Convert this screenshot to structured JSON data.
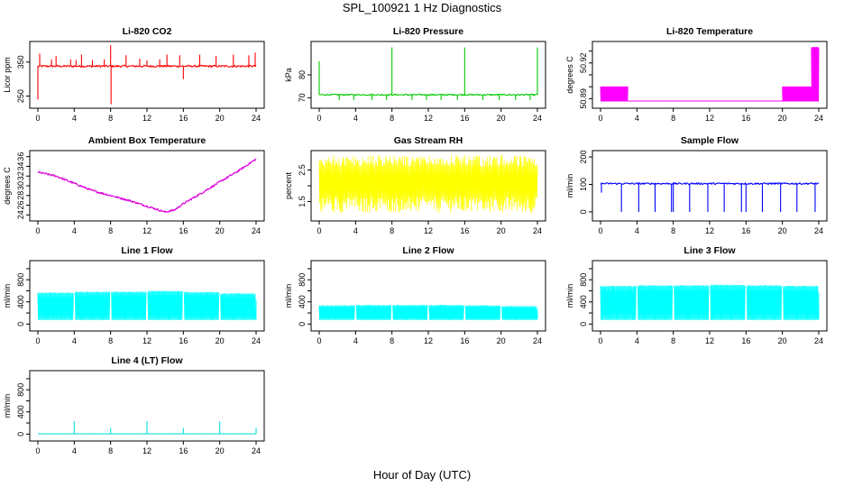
{
  "figure": {
    "title": "SPL_100921  1 Hz Diagnostics",
    "xlabel": "Hour of Day (UTC)"
  },
  "chart_data": [
    {
      "type": "line",
      "title": "Li-820 CO2",
      "ylabel": "Licor ppm",
      "color": "#ff0000",
      "xlim": [
        0,
        24
      ],
      "ylim": [
        225,
        400
      ],
      "yticks": [
        250,
        350
      ],
      "xticks": [
        0,
        4,
        8,
        12,
        16,
        20,
        24
      ],
      "baseline": 338,
      "noise": 3,
      "spikes": [
        {
          "x": 0.0,
          "y": 240
        },
        {
          "x": 0.2,
          "y": 375
        },
        {
          "x": 1.5,
          "y": 358
        },
        {
          "x": 2.0,
          "y": 368
        },
        {
          "x": 3.6,
          "y": 358
        },
        {
          "x": 4.2,
          "y": 356
        },
        {
          "x": 4.8,
          "y": 372
        },
        {
          "x": 6.0,
          "y": 356
        },
        {
          "x": 7.3,
          "y": 358
        },
        {
          "x": 8.0,
          "y": 400
        },
        {
          "x": 8.05,
          "y": 226
        },
        {
          "x": 9.7,
          "y": 370
        },
        {
          "x": 11.2,
          "y": 360
        },
        {
          "x": 12.0,
          "y": 355
        },
        {
          "x": 13.4,
          "y": 358
        },
        {
          "x": 14.2,
          "y": 372
        },
        {
          "x": 15.6,
          "y": 370
        },
        {
          "x": 16.0,
          "y": 300
        },
        {
          "x": 17.8,
          "y": 372
        },
        {
          "x": 19.6,
          "y": 368
        },
        {
          "x": 21.5,
          "y": 372
        },
        {
          "x": 23.2,
          "y": 370
        },
        {
          "x": 23.9,
          "y": 378
        }
      ]
    },
    {
      "type": "line",
      "title": "Li-820 Pressure",
      "ylabel": "kPa",
      "color": "#00cc00",
      "xlim": [
        0,
        24
      ],
      "ylim": [
        67,
        93
      ],
      "yticks": [
        70,
        80
      ],
      "xticks": [
        0,
        4,
        8,
        12,
        16,
        20,
        24
      ],
      "baseline": 71.3,
      "noise": 0.3,
      "spikes": [
        {
          "x": 0.0,
          "y": 86
        },
        {
          "x": 8.0,
          "y": 92
        },
        {
          "x": 16.0,
          "y": 92
        },
        {
          "x": 24.0,
          "y": 92
        },
        {
          "x": 2.2,
          "y": 69
        },
        {
          "x": 3.8,
          "y": 69
        },
        {
          "x": 5.8,
          "y": 69
        },
        {
          "x": 7.4,
          "y": 69
        },
        {
          "x": 10.2,
          "y": 69
        },
        {
          "x": 11.8,
          "y": 69
        },
        {
          "x": 13.4,
          "y": 69
        },
        {
          "x": 15.2,
          "y": 69
        },
        {
          "x": 18.0,
          "y": 69
        },
        {
          "x": 19.8,
          "y": 69
        },
        {
          "x": 21.6,
          "y": 69
        },
        {
          "x": 23.2,
          "y": 69
        }
      ]
    },
    {
      "type": "line",
      "title": "Li-820 Temperature",
      "ylabel": "degrees C",
      "color": "#ff00ff",
      "xlim": [
        0,
        24
      ],
      "ylim": [
        50.885,
        50.935
      ],
      "yticks": [
        50.89,
        50.92
      ],
      "yticks_minor": [
        50.89,
        50.9,
        50.91,
        50.92,
        50.93
      ],
      "xticks": [
        0,
        4,
        8,
        12,
        16,
        20,
        24
      ],
      "pattern": "quantized",
      "levels": [
        50.888,
        50.9
      ],
      "segments": [
        {
          "x0": 0.0,
          "x1": 3.0,
          "high": 50.9
        },
        {
          "x0": 20.0,
          "x1": 23.2,
          "high": 50.9
        },
        {
          "x0": 23.2,
          "x1": 24.0,
          "high": 50.933
        }
      ]
    },
    {
      "type": "line",
      "title": "Ambient Box Temperature",
      "ylabel": "degrees C",
      "color": "#dd00dd",
      "xlim": [
        0,
        24
      ],
      "ylim": [
        23.5,
        36.5
      ],
      "yticks": [
        24,
        26,
        28,
        30,
        32,
        34,
        36
      ],
      "xticks": [
        0,
        4,
        8,
        12,
        16,
        20,
        24
      ],
      "points": [
        {
          "x": 0,
          "y": 32.8
        },
        {
          "x": 2,
          "y": 32.0
        },
        {
          "x": 4,
          "y": 30.5
        },
        {
          "x": 6,
          "y": 29.0
        },
        {
          "x": 8,
          "y": 28.0
        },
        {
          "x": 10,
          "y": 27.0
        },
        {
          "x": 12,
          "y": 25.8
        },
        {
          "x": 14,
          "y": 24.6
        },
        {
          "x": 15,
          "y": 25.0
        },
        {
          "x": 16,
          "y": 26.3
        },
        {
          "x": 18,
          "y": 28.5
        },
        {
          "x": 20,
          "y": 30.8
        },
        {
          "x": 22,
          "y": 33.0
        },
        {
          "x": 24,
          "y": 35.5
        }
      ],
      "noise": 0.2
    },
    {
      "type": "line",
      "title": "Gas Stream RH",
      "ylabel": "percent",
      "color": "#ffff00",
      "xlim": [
        0,
        24
      ],
      "ylim": [
        1.0,
        3.0
      ],
      "yticks": [
        1.5,
        2.5
      ],
      "yticks_minor": [
        1.5,
        2.0,
        2.5
      ],
      "xticks": [
        0,
        4,
        8,
        12,
        16,
        20,
        24
      ],
      "pattern": "band",
      "band_low": 1.15,
      "band_high": 2.95
    },
    {
      "type": "line",
      "title": "Sample Flow",
      "ylabel": "ml/min",
      "color": "#0000ff",
      "xlim": [
        0,
        24
      ],
      "ylim": [
        -20,
        210
      ],
      "yticks": [
        0,
        100,
        200
      ],
      "xticks": [
        0,
        4,
        8,
        12,
        16,
        20,
        24
      ],
      "baseline": 103,
      "noise": 3,
      "spikes": [
        {
          "x": 0.1,
          "y": 70
        },
        {
          "x": 2.3,
          "y": 0
        },
        {
          "x": 4.2,
          "y": 0
        },
        {
          "x": 6.0,
          "y": 0
        },
        {
          "x": 7.8,
          "y": 0
        },
        {
          "x": 8.0,
          "y": 0
        },
        {
          "x": 9.8,
          "y": 0
        },
        {
          "x": 11.8,
          "y": 0
        },
        {
          "x": 13.6,
          "y": 0
        },
        {
          "x": 15.5,
          "y": 0
        },
        {
          "x": 16.0,
          "y": 0
        },
        {
          "x": 17.8,
          "y": 0
        },
        {
          "x": 19.8,
          "y": 0
        },
        {
          "x": 21.6,
          "y": 0
        },
        {
          "x": 23.6,
          "y": 0
        }
      ]
    },
    {
      "type": "line",
      "title": "Line 1 Flow",
      "ylabel": "ml/min",
      "color": "#00ffff",
      "xlim": [
        0,
        24
      ],
      "ylim": [
        -60,
        1080
      ],
      "yticks": [
        0,
        400,
        800
      ],
      "yticks_minor": [
        0,
        200,
        400,
        600,
        800,
        1000
      ],
      "xticks": [
        0,
        4,
        8,
        12,
        16,
        20,
        24
      ],
      "pattern": "block",
      "low": 80,
      "highs": [
        {
          "x0": 0,
          "x1": 3.9,
          "y": 560
        },
        {
          "x0": 4.1,
          "x1": 7.9,
          "y": 575
        },
        {
          "x0": 8.1,
          "x1": 11.9,
          "y": 575
        },
        {
          "x0": 12.1,
          "x1": 15.9,
          "y": 590
        },
        {
          "x0": 16.1,
          "x1": 19.9,
          "y": 570
        },
        {
          "x0": 20.1,
          "x1": 23.9,
          "y": 545
        }
      ],
      "end_value": 430
    },
    {
      "type": "line",
      "title": "Line 2 Flow",
      "ylabel": "ml/min",
      "color": "#00ffff",
      "xlim": [
        0,
        24
      ],
      "ylim": [
        -60,
        1080
      ],
      "yticks": [
        0,
        400,
        800
      ],
      "yticks_minor": [
        0,
        200,
        400,
        600,
        800,
        1000
      ],
      "xticks": [
        0,
        4,
        8,
        12,
        16,
        20,
        24
      ],
      "pattern": "block",
      "low": 80,
      "highs": [
        {
          "x0": 0,
          "x1": 3.9,
          "y": 330
        },
        {
          "x0": 4.1,
          "x1": 7.9,
          "y": 335
        },
        {
          "x0": 8.1,
          "x1": 11.9,
          "y": 335
        },
        {
          "x0": 12.1,
          "x1": 15.9,
          "y": 335
        },
        {
          "x0": 16.1,
          "x1": 19.9,
          "y": 330
        },
        {
          "x0": 20.1,
          "x1": 23.9,
          "y": 315
        }
      ],
      "end_value": 260
    },
    {
      "type": "line",
      "title": "Line 3 Flow",
      "ylabel": "ml/min",
      "color": "#00ffff",
      "xlim": [
        0,
        24
      ],
      "ylim": [
        -60,
        1080
      ],
      "yticks": [
        0,
        400,
        800
      ],
      "yticks_minor": [
        0,
        200,
        400,
        600,
        800,
        1000
      ],
      "xticks": [
        0,
        4,
        8,
        12,
        16,
        20,
        24
      ],
      "pattern": "block",
      "low": 80,
      "highs": [
        {
          "x0": 0,
          "x1": 3.9,
          "y": 680
        },
        {
          "x0": 4.1,
          "x1": 7.9,
          "y": 690
        },
        {
          "x0": 8.1,
          "x1": 11.9,
          "y": 690
        },
        {
          "x0": 12.1,
          "x1": 15.9,
          "y": 700
        },
        {
          "x0": 16.1,
          "x1": 19.9,
          "y": 690
        },
        {
          "x0": 20.1,
          "x1": 23.9,
          "y": 680
        }
      ],
      "end_value": 560
    },
    {
      "type": "line",
      "title": "Line 4 (LT) Flow",
      "ylabel": "ml/min",
      "color": "#00dddd",
      "xlim": [
        0,
        24
      ],
      "ylim": [
        -60,
        1080
      ],
      "yticks": [
        0,
        400,
        800
      ],
      "yticks_minor": [
        0,
        200,
        400,
        600,
        800,
        1000
      ],
      "xticks": [
        0,
        4,
        8,
        12,
        16,
        20,
        24
      ],
      "baseline": 5,
      "noise": 1,
      "spikes": [
        {
          "x": 4.0,
          "y": 230
        },
        {
          "x": 8.0,
          "y": 110
        },
        {
          "x": 12.0,
          "y": 230
        },
        {
          "x": 16.0,
          "y": 110
        },
        {
          "x": 20.0,
          "y": 230
        },
        {
          "x": 24.0,
          "y": 110
        }
      ]
    }
  ]
}
